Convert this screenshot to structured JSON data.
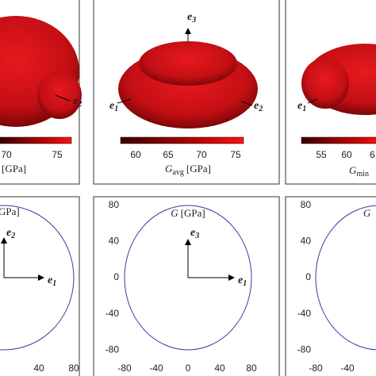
{
  "top_panels": [
    {
      "colorbar_ticks": [
        70,
        75
      ],
      "axis_label": {
        "unit": "[GPa]"
      },
      "vectors": [
        {
          "symbol": "e",
          "index": "2"
        }
      ]
    },
    {
      "colorbar_ticks": [
        60,
        65,
        70,
        75
      ],
      "axis_label": {
        "symbol": "G",
        "sub": "avg",
        "unit": "[GPa]"
      },
      "vectors": [
        {
          "symbol": "e",
          "index": "3"
        },
        {
          "symbol": "e",
          "index": "1"
        },
        {
          "symbol": "e",
          "index": "2"
        }
      ]
    },
    {
      "colorbar_ticks": [
        55,
        60,
        "6"
      ],
      "axis_label": {
        "symbol": "G",
        "sub": "min"
      },
      "vectors": [
        {
          "symbol": "e",
          "index": "1"
        }
      ]
    }
  ],
  "bottom_panels": [
    {
      "title": "GPa]",
      "xticks": [
        40,
        80
      ],
      "vectors": [
        {
          "symbol": "e",
          "index": "2"
        },
        {
          "symbol": "e",
          "index": "1"
        }
      ]
    },
    {
      "title": {
        "symbol": "G",
        "unit": "[GPa]"
      },
      "xticks": [
        -80,
        -40,
        0,
        40,
        80
      ],
      "yticks": [
        80,
        40,
        0,
        -40,
        -80
      ],
      "vectors": [
        {
          "symbol": "e",
          "index": "3"
        },
        {
          "symbol": "e",
          "index": "1"
        }
      ]
    },
    {
      "title": {
        "symbol": "G"
      },
      "xticks": [
        -80,
        -40
      ],
      "yticks": [
        80,
        40,
        0,
        -40,
        -80
      ]
    }
  ]
}
